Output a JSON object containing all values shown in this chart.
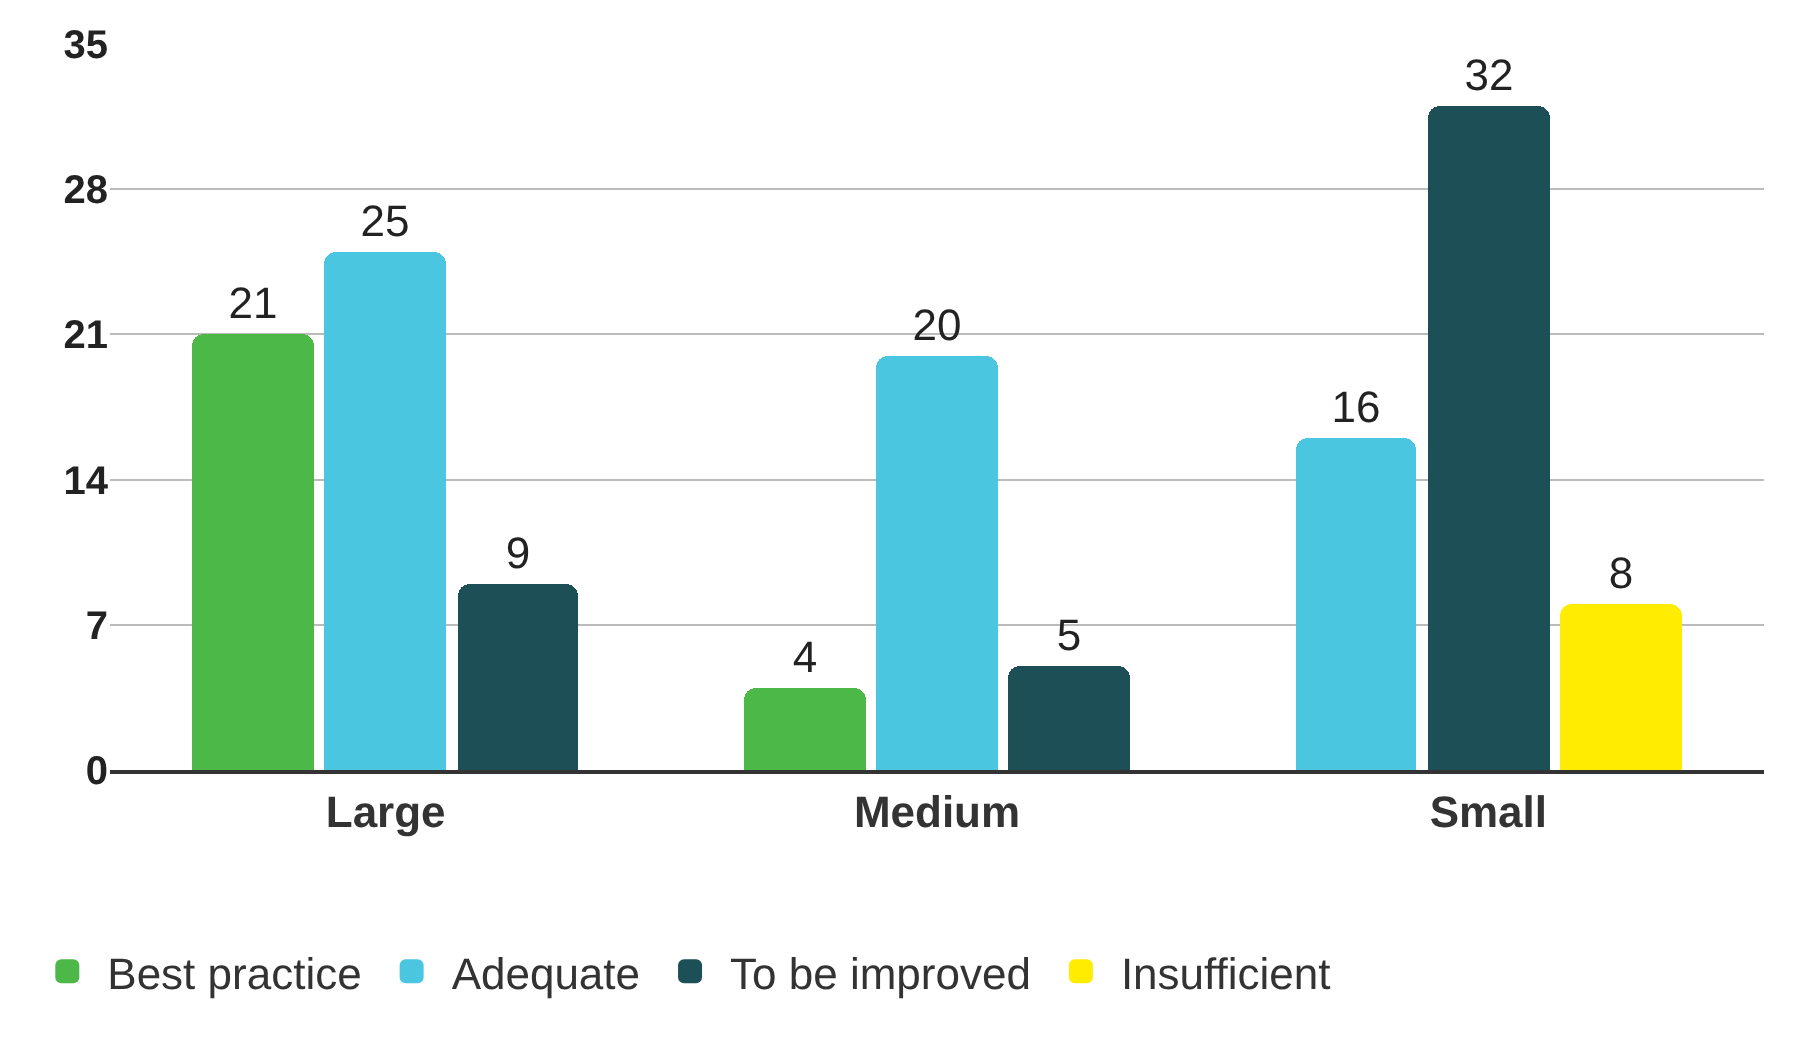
{
  "chart_data": {
    "type": "bar",
    "categories": [
      "Large",
      "Medium",
      "Small"
    ],
    "series": [
      {
        "name": "Best practice",
        "color": "#4cb848",
        "values": [
          21,
          4,
          null
        ]
      },
      {
        "name": "Adequate",
        "color": "#4bc6e0",
        "values": [
          25,
          20,
          16
        ]
      },
      {
        "name": "To be improved",
        "color": "#1d4f57",
        "values": [
          9,
          5,
          32
        ]
      },
      {
        "name": "Insufficient",
        "color": "#ffec00",
        "values": [
          null,
          null,
          8
        ]
      }
    ],
    "ylim": [
      0,
      35
    ],
    "yticks": [
      0,
      7,
      14,
      21,
      28,
      35
    ],
    "grid": "y",
    "legend": "bottom",
    "data_labels": true
  }
}
